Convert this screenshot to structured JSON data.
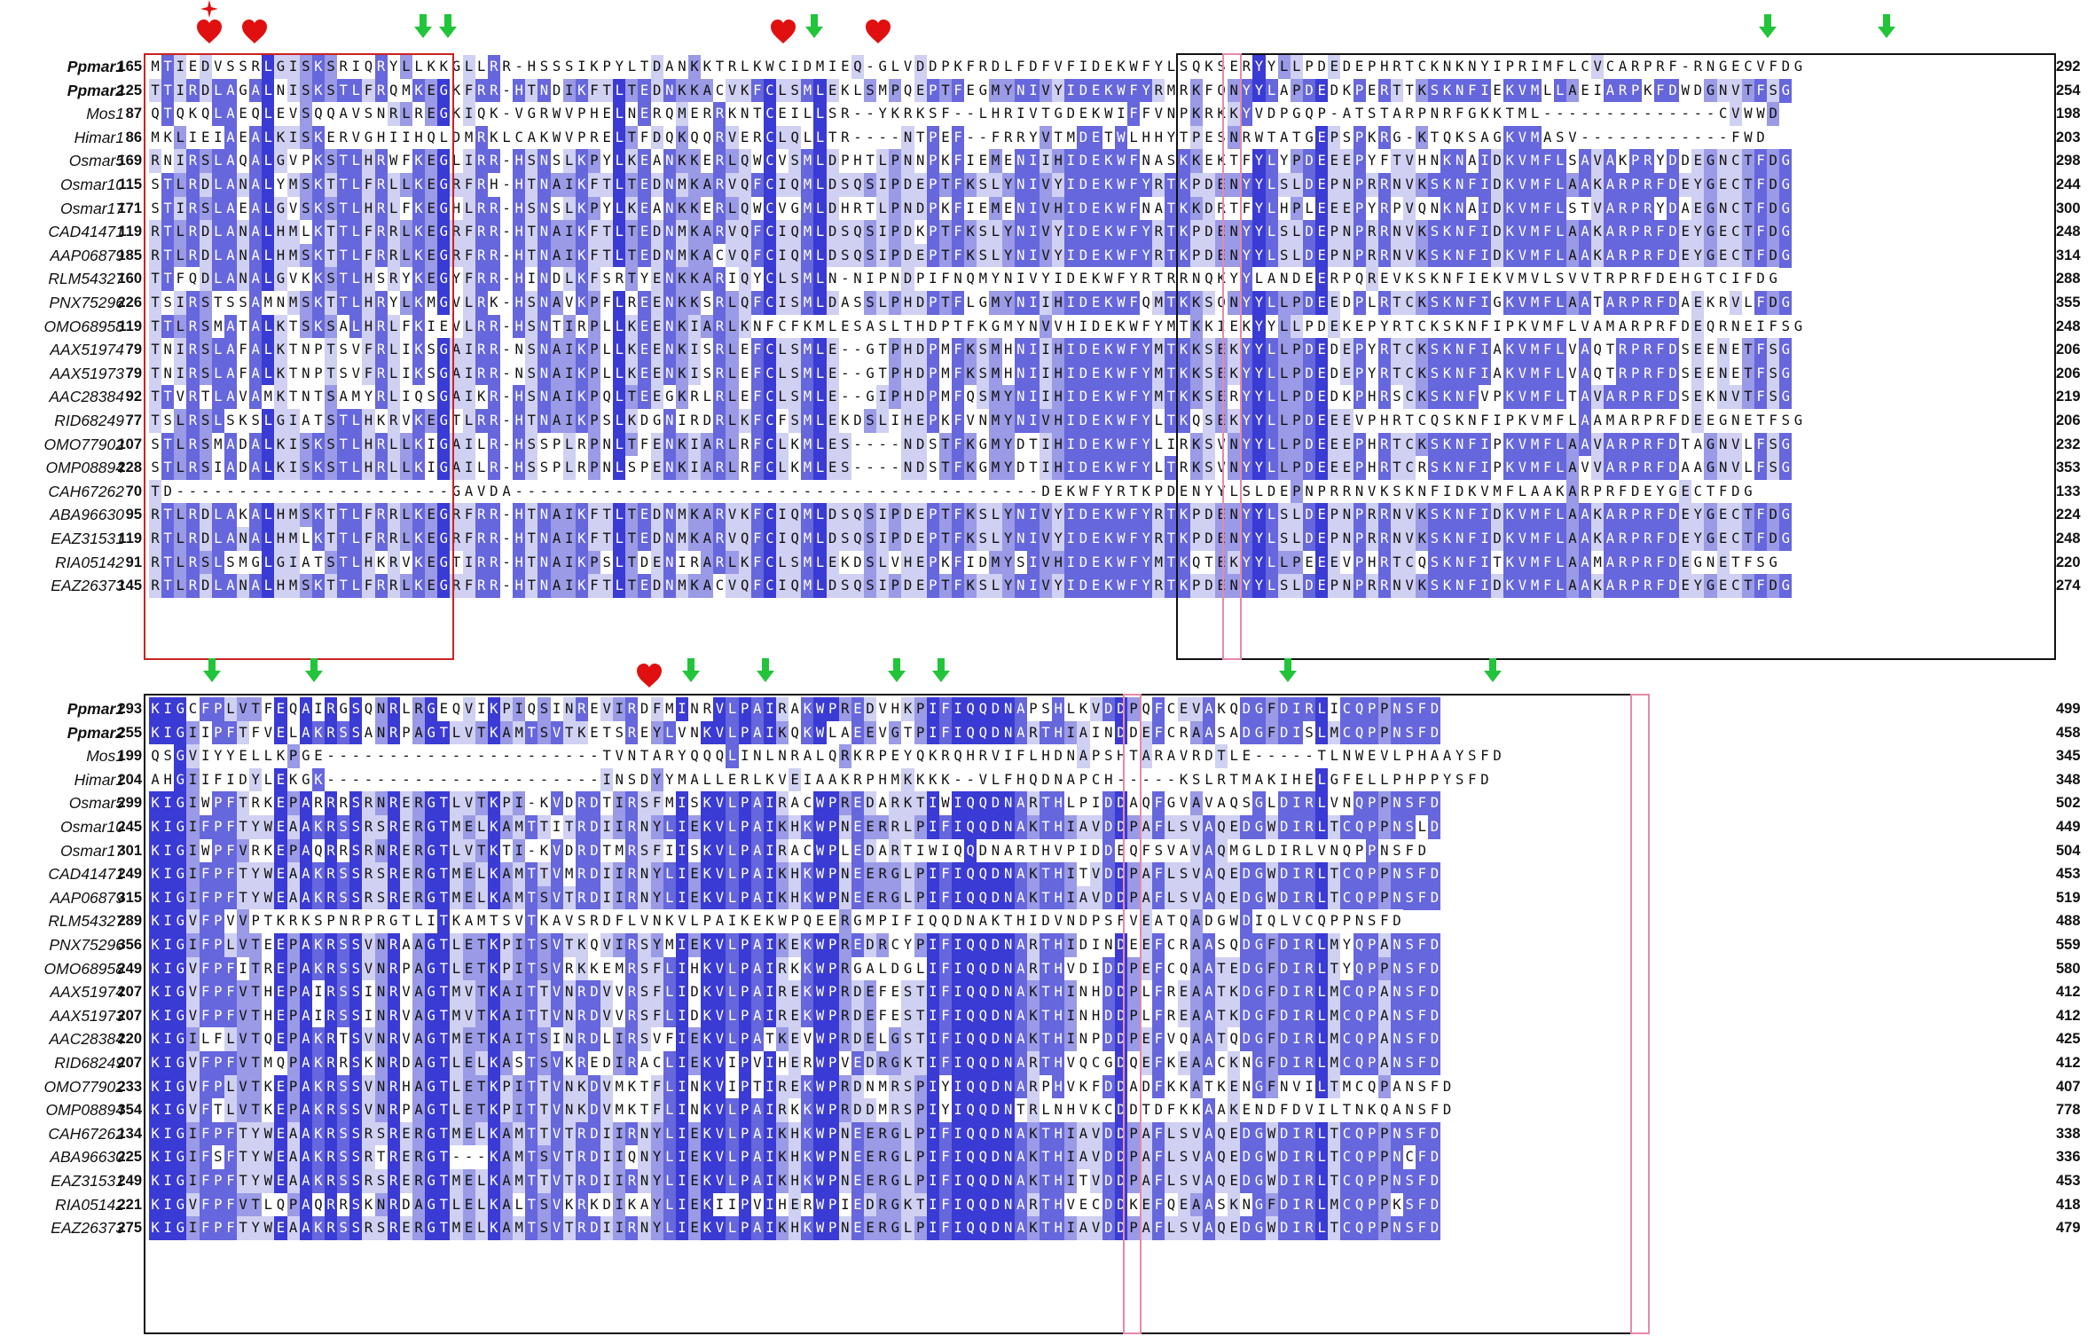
{
  "colors": {
    "level0": "#ffffff",
    "level1": "#d0d0f2",
    "level2": "#9a9ae6",
    "level3": "#6666dd",
    "level4": "#3a3ad4",
    "red_box": "#cc2222",
    "black_box": "#111111",
    "pink_box": "#e88aa6",
    "arrow_green": "#22c43a",
    "heart_red": "#e01010"
  },
  "icons": {
    "arrow": "green-down-arrow-icon",
    "heart": "red-heart-icon",
    "star": "red-star-icon"
  },
  "blocks": [
    {
      "rows": [
        {
          "name": "Ppmar1",
          "bold": true,
          "start": "165",
          "end": "292",
          "seq": "MTIEDVSSRLGISKSRIQRYLLKKGLLRR-HSSSIKPYLTDANKKTRLKWCIDMIEQ-GLVDDPKFRDLFDFVFIDEKWFYLSQKSERYYLLPDEDEPHRTCKNKNYIPRIMFLCVCARPRF-RNGECVFDG"
        },
        {
          "name": "Ppmar2",
          "bold": true,
          "start": "125",
          "end": "254",
          "seq": "TTIRDLAGALNISKSTLFRQMKEGKFRR-HTNDIKFTLTEDNKKACVKFCLSMLEKLSMPQEPTFEGMYNIVYIDEKWFYRMRKFQNYYLAPDEDKPERTTKSKNFIEKVMLLAEIARPKFDWDGNVTFSG"
        },
        {
          "name": "Mos1",
          "bold": false,
          "start": "87",
          "end": "198",
          "seq": "QTQKQLAEQLEVSQQAVSNRLREGKIQK-VGRWVPHELNERQMERRKNTCEILLSR--YKRKSF--LHRIVTGDEKWIFFVNPKRKKYVDPGQP-ATSTARPNRFGKKTML--------------CVWWD"
        },
        {
          "name": "Himar1",
          "bold": false,
          "start": "86",
          "end": "203",
          "seq": "MKLIEIAEALKISKERVGHIIHQLDMRKLCAKWVPRELTFDQKQQRVERCLQLLTR----NTPEF--FRRYVTMDETWLHHYTPESNRWTATGEPSPKRG-KTQKSAGKVMASV------------FWD"
        },
        {
          "name": "Osmar5",
          "bold": false,
          "start": "169",
          "end": "298",
          "seq": "RNIRSLAQALGVPKSTLHRWFKEGLIRR-HSNSLKPYLKEANKKERLQWCVSMLDPHTLPNNPKFIEMENIIHIDEKWFNASKKEKTFYLYPDEEEPYFTVHNKNAIDKVMFLSAVAKPRYDDEGNCTFDG"
        },
        {
          "name": "Osmar10",
          "bold": false,
          "start": "115",
          "end": "244",
          "seq": "STLRDLANALYMSKTTLFRLLKEGRFRH-HTNAIKFTLTEDNMKARVQFCIQMLDSQSIPDEPTFKSLYNIVYIDEKWFYRTKPDENYYLSLDEPNPRRNVKSKNFIDKVMFLAAKARPRFDEYGECTFDG"
        },
        {
          "name": "Osmar17",
          "bold": false,
          "start": "171",
          "end": "300",
          "seq": "STIRSLAEALGVSKSTLHRLFKEGHLRR-HSNSLKPYLKEANKKERLQWCVGMLDHRTLPNDPKFIEMENIVHIDEKWFNATKKDRTFYLHPLEEEPYRPVQNKNAIDKVMFLSTVARPRYDAEGNCTFDG"
        },
        {
          "name": "CAD41471",
          "bold": false,
          "start": "119",
          "end": "248",
          "seq": "RTLRDLANALHMLKTTLFRRLKEGRFRR-HTNAIKFTLTEDNMKARVQFCIQMLDSQSIPDKPTFKSLYNIVYIDEKWFYRTKPDENYYLSLDEPNPRRNVKSKNFIDKVMFLAAKARPRFDEYGECTFDG"
        },
        {
          "name": "AAP06879",
          "bold": false,
          "start": "185",
          "end": "314",
          "seq": "RTLRDLANALHMSKTTLFRRLKEGRFRR-HTNAIKFTLTEDNMKACVQFCIQMLDSQSIPDEPTFKSLYNIVYIDEKWFYRTKPDENYYLSLDEPNPRRNVKSKNFIDKVMFLAAKARPRFDEYGECTFDG"
        },
        {
          "name": "RLM54327",
          "bold": false,
          "start": "160",
          "end": "288",
          "seq": "TTFQDLANALGVKKSTLHSRYKEGYFRR-HINDLKFSRTYENKKARIQYCLSMLN-NIPNDPIFNQMYNIVYIDEKWFYRTRRNQKYYLANDEERPQREVKSKNFIEKVMVLSVVTRPRFDEHGTCIFDG"
        },
        {
          "name": "PNX75296",
          "bold": false,
          "start": "226",
          "end": "355",
          "seq": "TSIRSTSSAMNMSKTTLHRYLKMGVLRK-HSNAVKPFLREENKKSRLQFCISMLDASSLPHDPTFLGMYNIIHIDEKWFQMTKKSQNYYLLPDEEDPLRTCKSKNFIGKVMFLAATARPRFDAEKRVLFDG"
        },
        {
          "name": "OMO68958",
          "bold": false,
          "start": "119",
          "end": "248",
          "seq": "TTLRSMATALKTSKSALHRLFKIEVLRR-HSNTIRPLLKEENKIARLKNFCFKMLESASLTHDPTFKGMYNVVHIDEKWFYMTKKIEKYYLLPDEKEPYRTCKSKNFIPKVMFLVAMARPRFDEQRNEIFSG"
        },
        {
          "name": "AAX51974",
          "bold": false,
          "start": "79",
          "end": "206",
          "seq": "TNIRSLAFALKTNPTSVFRLIKSGAIRR-NSNAIKPLLKEENKISRLEFCLSMLE--GTPHDPMFKSMHNIIHIDEKWFYMTKKSEKYYLLPDEDEPYRTCKSKNFIAKVMFLVAQTRPRFDSEENETFSG"
        },
        {
          "name": "AAX51973",
          "bold": false,
          "start": "79",
          "end": "206",
          "seq": "TNIRSLAFALKTNPTSVFRLIKSGAIRR-NSNAIKPLLKEENKISRLEFCLSMLE--GTPHDPMFKSMHNIIHIDEKWFYMTKKSEKYYLLPDEDEPYRTCKSKNFIAKVMFLVAQTRPRFDSEENETFSG"
        },
        {
          "name": "AAC28384",
          "bold": false,
          "start": "92",
          "end": "219",
          "seq": "TTVRTLAVAMKTNTSAMYRLIQSGAIKR-HSNAIKPQLTEEGKRLRLEFCLSMLE--GIPHDPMFQSMYNIIHIDEKWFYMTKKSERYYLLPDEDKPHRSCKSKNFVPKVMFLTAVARPRFDSEKNVTFSG"
        },
        {
          "name": "RID68249",
          "bold": false,
          "start": "77",
          "end": "206",
          "seq": "TSLRSLSKSLGIATSTLHKRVKEGTLRR-HTNAIKPSLKDGNIRDRLKFCFSMLEKDSLIHEPKFVNMYNIVHIDEKWFYLTKQSEKYYLLPDEEEVPHRTCQSKNFIPKVMFLAAMARPRFDEEGNETFSG"
        },
        {
          "name": "OMO77902",
          "bold": false,
          "start": "107",
          "end": "232",
          "seq": "STLRSMADALKISKSTLHRLLKIGAILR-HSSPLRPNLTFENKIARLRFCLKMLES----NDSTFKGMYDTIHIDEKWFYLIRKSVNYYLLPDEEEPHRTCKSKNFIPKVMFLAAVARPRFDTAGNVLFSG"
        },
        {
          "name": "OMP08894",
          "bold": false,
          "start": "228",
          "end": "353",
          "seq": "STLRSIADALKISKSTLHRLLKIGAILR-HSSPLRPNLSPENKIARLRFCLKMLES----NDSTFKGMYDTIHIDEKWFYLTRKSVNYYLLPDEEEPHRTCRSKNFIPKVMFLAVVARPRFDAAGNVLFSG"
        },
        {
          "name": "CAH67262",
          "bold": false,
          "start": "70",
          "end": "133",
          "seq": "TD----------------------GAVDA------------------------------------------DEKWFYRTKPDENYYLSLDEPNPRRNVKSKNFIDKVMFLAAKARPRFDEYGECTFDG"
        },
        {
          "name": "ABA96630",
          "bold": false,
          "start": "95",
          "end": "224",
          "seq": "RTLRDLAKALHMSKTTLFRRLKEGRFRR-HTNAIKFTLTEDNMKARVKFCIQMLDSQSIPDEPTFKSLYNIVYIDEKWFYRTKPDENYYLSLDEPNPRRNVKSKNFIDKVMFLAAKARPRFDEYGECTFDG"
        },
        {
          "name": "EAZ31531",
          "bold": false,
          "start": "119",
          "end": "248",
          "seq": "RTLRDLANALHMLKTTLFRRLKEGRFRR-HTNAIKFTLTEDNMKARVQFCIQMLDSQSIPDEPTFKSLYNIVYIDEKWFYRTKPDENYYLSLDEPNPRRNVKSKNFIDKVMFLAAKARPRFDEYGECTFDG"
        },
        {
          "name": "RIA05142",
          "bold": false,
          "start": "91",
          "end": "220",
          "seq": "RTLRSLSMGLGIATSTLHKRVKEGTIRR-HTNAIKPSLTDENIRARLKFCLSMLEKDSLVHEPKFIDMYSIVHIDEKWFYMTKQTEKYYLLPEEEVPHRTCQSKNFITKVMFLAAMARPRFDEGNETFSG"
        },
        {
          "name": "EAZ26373",
          "bold": false,
          "start": "145",
          "end": "274",
          "seq": "RTLRDLANALHMSKTTLFRRLKEGRFRR-HTNAIKFTLTEDNMKACVQFCIQMLDSQSIPDEPTFKSLYNIVYIDEKWFYRTKPDENYYLSLDEPNPRRNVKSKNFIDKVMFLAAKARPRFDEYGECTFDG"
        }
      ]
    },
    {
      "rows": [
        {
          "name": "Ppmar1",
          "bold": true,
          "start": "293",
          "end": "499",
          "seq": "KIGCFPLVTFEQAIRGSQNRLRGEQVIKPIQSINREVIRDFMINRVLPAIRAKWPREDVHKPIFIQQDNAPSHLKVDDPQFCEVAKQDGFDIRLICQPPNSFD"
        },
        {
          "name": "Ppmar2",
          "bold": true,
          "start": "255",
          "end": "458",
          "seq": "KIGIIPFTFVELAKRSSANRPAGTLVTKAMTSVTKETSREYLVNKVLPAIKQKWLAEEVGTPIFIQQDNARTHIAINDDEFCRAASADGFDISLMCQPPNSFD"
        },
        {
          "name": "Mos1",
          "bold": false,
          "start": "199",
          "end": "345",
          "seq": "QSGVIYYELLKPGE----------------------TVNTARYQQQLINLNRALQRKRPEYQKRQHRVIFLHDNAPSHTARAVRDTLE-----TLNWEVLPHAAYSFD"
        },
        {
          "name": "Himar1",
          "bold": false,
          "start": "204",
          "end": "348",
          "seq": "AHGIIFIDYLEKGK----------------------INSDYYMALLERLKVEIAAKRPHMKKKK--VLFHQDNAPCH-----KSLRTMAKIHELGFELLPHPPYSFD"
        },
        {
          "name": "Osmar5",
          "bold": false,
          "start": "299",
          "end": "502",
          "seq": "KIGIWPFTRKEPARRRSRNRERGTLVTKPI-KVDRDTIRSFMISKVLPAIRACWPREDARKTIWIQQDNARTHLPIDDAQFGVAVAQSGLDIRLVNQPPNSFD"
        },
        {
          "name": "Osmar10",
          "bold": false,
          "start": "245",
          "end": "449",
          "seq": "KIGIFPFTYWEAAKRSSRSRERGTMELKAMTTITRDIIRNYLIEKVLPAIKHKWPNEERRLPIFIQQDNAKTHIAVDDPAFLSVAQEDGWDIRLTCQPPNSLD"
        },
        {
          "name": "Osmar17",
          "bold": false,
          "start": "301",
          "end": "504",
          "seq": "KIGIWPFVRKEPAQRRSRNRERGTLVTKTI-KVDRDTMRSFIISKVLPAIRACWPLEDARTIWIQQDNARTHVPIDDEQFSVAVAQMGLDIRLVNQPPNSFD"
        },
        {
          "name": "CAD41471",
          "bold": false,
          "start": "249",
          "end": "453",
          "seq": "KIGIFPFTYWEAAKRSSRSRERGTMELKAMTTVMRDIIRNYLIEKVLPAIKHKWPNEERGLPIFIQQDNAKTHITVDDPAFLSVAQEDGWDIRLTCQPPNSFD"
        },
        {
          "name": "AAP06879",
          "bold": false,
          "start": "315",
          "end": "519",
          "seq": "KIGIFPFTYWEAAKRSSRSRERGTMELKAMTSVTRDIIRNYLIEKVLPAIKHKWPNEERGLPIFIQQDNAKTHIAVDDPAFLSVAQEDGWDIRLTCQPPNSFD"
        },
        {
          "name": "RLM54327",
          "bold": false,
          "start": "289",
          "end": "488",
          "seq": "KIGVFPVVPTKRKSPNRPRGTLITKAMTSVTKAVSRDFLVNKVLPAIKEKWPQEERGMPIFIQQDNAKTHIDVNDPSFVEATQADGWDIQLVCQPPNSFD"
        },
        {
          "name": "PNX75296",
          "bold": false,
          "start": "356",
          "end": "559",
          "seq": "KIGIFPLVTEEPAKRSSVNRAAGTLETKPITSVTKQVIRSYMIEKVLPAIKEKWPREDRCYPIFIQQDNARTHIDINDEEFCRAASQDGFDIRLMYQPANSFD"
        },
        {
          "name": "OMO68958",
          "bold": false,
          "start": "249",
          "end": "580",
          "seq": "KIGVFPFITREPAKRSSVNRPAGTLETKPITSVRKKEMRSFLIHKVLPAIRKKWPRGALDGLIFIQQDNARTHVDIDDPEFCQAATEDGFDIRLTYQPPNSFD"
        },
        {
          "name": "AAX51974",
          "bold": false,
          "start": "207",
          "end": "412",
          "seq": "KIGVFPFVTHEPAIRSSINRVAGTMVTKAITTVNRDVVRSFLIDKVLPAIREKWPRDEFESTIFIQQDNAKTHINHDDPLFREAATKDGFDIRLMCQPANSFD"
        },
        {
          "name": "AAX51973",
          "bold": false,
          "start": "207",
          "end": "412",
          "seq": "KIGVFPFVTHEPAIRSSINRVAGTMVTKAITTVNRDVVRSFLIDKVLPAIREKWPRDEFESTIFIQQDNAKTHINHDDPLFREAATKDGFDIRLMCQPANSFD"
        },
        {
          "name": "AAC28384",
          "bold": false,
          "start": "220",
          "end": "425",
          "seq": "KIGILFLVTQEPAKRTSVNRVAGTMETKAITSINRDLIRSVFIEKVLPATKEVWPRDELGSTIFIQQDNAKTHINPDDPEFVQAATQDGFDIRLMCQPANSFD"
        },
        {
          "name": "RID68249",
          "bold": false,
          "start": "207",
          "end": "412",
          "seq": "KIGVFPFVTMQPAKRRSKNRDAGTLELKASTSVKREDIRACLIEKVIPVIHERWPVEDRGKTIFIQQDNARTHVQCGDQEFKEAACKNGFDIRLMCQPANSFD"
        },
        {
          "name": "OMO77902",
          "bold": false,
          "start": "233",
          "end": "407",
          "seq": "KIGVFPLVTKEPAKRSSVNRHAGTLETKPITTVNKDVMKTFLINKVIPTIREKWPRDNMRSPIYIQQDNARPHVKFDDADFKKATKENGFNVILTMCQPANSFD"
        },
        {
          "name": "OMP08894",
          "bold": false,
          "start": "354",
          "end": "778",
          "seq": "KIGVFTLVTKEPAKRSSVNRPAGTLETKPITTVNKDVMKTFLINKVLPAIRKKWPRDDMRSPIYIQQDNTRLNHVKCDDTDFKKAAKENDFDVILTNKQANSFD"
        },
        {
          "name": "CAH67262",
          "bold": false,
          "start": "134",
          "end": "338",
          "seq": "KIGIFPFTYWEAAKRSSRSRERGTMELKAMTTVTRDIIRNYLIEKVLPAIKHKWPNEERGLPIFIQQDNAKTHIAVDDPAFLSVAQEDGWDIRLTCQPPNSFD"
        },
        {
          "name": "ABA96630",
          "bold": false,
          "start": "225",
          "end": "336",
          "seq": "KIGIFSFTYWEAAKRSSRTRERGT---KAMTSVTRDIIQNYLIEKVLPAIKHKWPNEERGLPIFIQQDNAKTHIAVDDPAFLSVAQEDGWDIRLTCQPPNCFD"
        },
        {
          "name": "EAZ31531",
          "bold": false,
          "start": "249",
          "end": "453",
          "seq": "KIGIFPFTYWEAAKRSSRSRERGTMELKAMTTVTRDIIRNYLIEKVLPAIKHKWPNEERGLPIFIQQDNAKTHITVDDPAFLSVAQEDGWDIRLTCQPPNSFD"
        },
        {
          "name": "RIA05142",
          "bold": false,
          "start": "221",
          "end": "418",
          "seq": "KIGVFPFVTLQPAQRRSKNRDAGTLELKALTSVKRKDIKAYLIEKIIPVIHERWPIEDRGKTIFIQQDNARTHVECDDKEFQEAASKNGFDIRLMCQPPKSFD"
        },
        {
          "name": "EAZ26373",
          "bold": false,
          "start": "275",
          "end": "479",
          "seq": "KIGIFPFTYWEAAKRSSRSRERGTMELKAMTSVTRDIIRNYLIEKVLPAIKHKWPNEERGLPIFIQQDNAKTHIAVDDPAFLSVAQEDGWDIRLTCQPPNSFD"
        }
      ]
    }
  ]
}
